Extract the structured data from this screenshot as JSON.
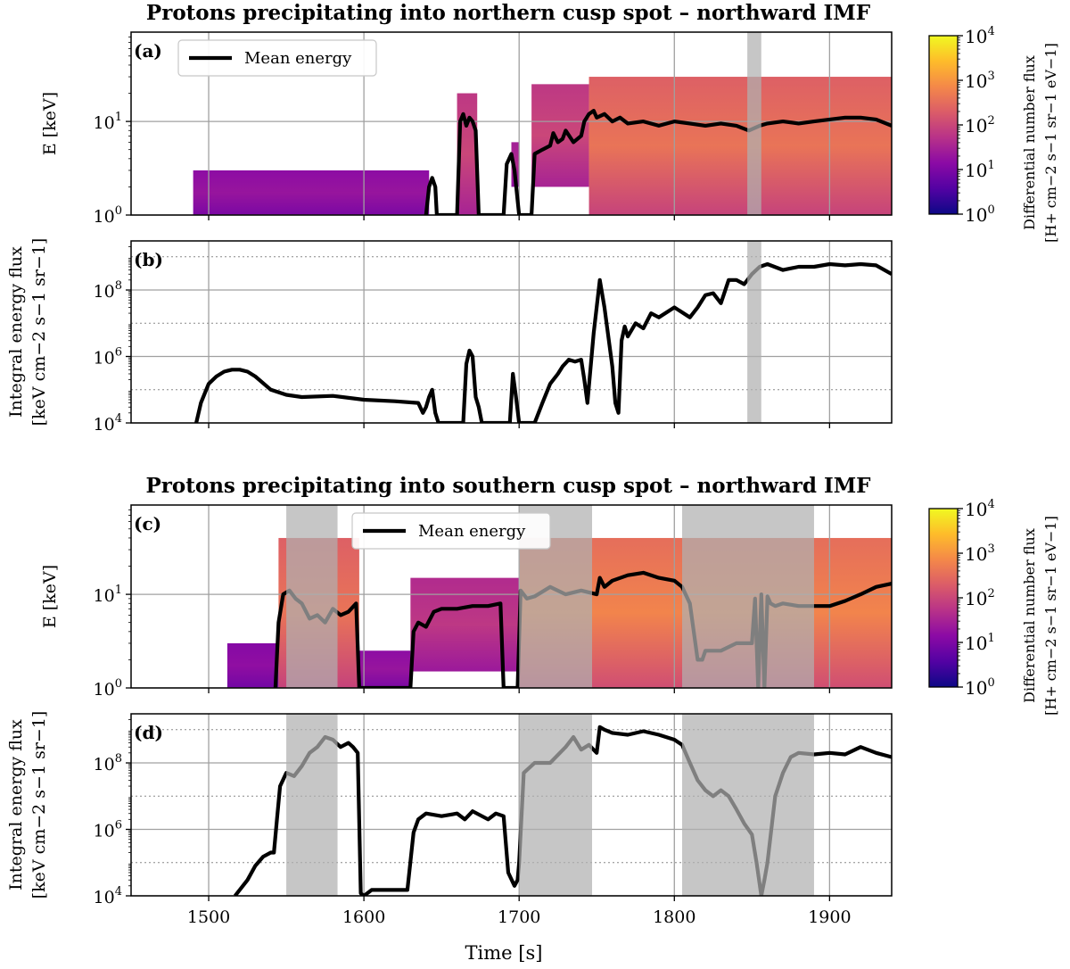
{
  "chart_data": [
    {
      "panel": "a",
      "type": "heatmap",
      "title": "Protons precipitating into northern cusp spot – northward IMF",
      "panel_label": "(a)",
      "ylabel": "E [keV]",
      "y_scale": "log",
      "xlim": [
        1450,
        1940
      ],
      "ylim": [
        1,
        90
      ],
      "y_ticks": [
        {
          "v": 1,
          "e": "0"
        },
        {
          "v": 10,
          "e": "1"
        }
      ],
      "legend": {
        "label": "Mean energy",
        "placement": "top-left"
      },
      "shaded_intervals": [
        [
          1847,
          1856
        ]
      ],
      "heatmap_regions": [
        {
          "x": [
            1490,
            1642
          ],
          "emin": 1.0,
          "emax": 3.0,
          "level": 1.3
        },
        {
          "x": [
            1660,
            1673
          ],
          "emin": 1.0,
          "emax": 20,
          "level": 2.0
        },
        {
          "x": [
            1695,
            1700
          ],
          "emin": 2.0,
          "emax": 6,
          "level": 1.6
        },
        {
          "x": [
            1708,
            1745
          ],
          "emin": 2.0,
          "emax": 25,
          "level": 2.0
        },
        {
          "x": [
            1745,
            1940
          ],
          "emin": 1.0,
          "emax": 30,
          "level": 2.6
        }
      ],
      "series": [
        {
          "name": "Mean energy",
          "x": [
            1640,
            1642,
            1644,
            1646,
            1647,
            1660,
            1662,
            1664,
            1666,
            1668,
            1670,
            1672,
            1674,
            1690,
            1692,
            1695,
            1697,
            1700,
            1708,
            1710,
            1715,
            1720,
            1722,
            1725,
            1728,
            1730,
            1735,
            1740,
            1742,
            1745,
            1748,
            1750,
            1755,
            1760,
            1765,
            1770,
            1780,
            1790,
            1800,
            1810,
            1820,
            1830,
            1840,
            1848,
            1855,
            1860,
            1870,
            1880,
            1890,
            1900,
            1910,
            1920,
            1930,
            1940
          ],
          "y": [
            1.0,
            2.0,
            2.5,
            2.0,
            1.0,
            1.0,
            10,
            12,
            9,
            11,
            10,
            8,
            1.0,
            1.0,
            3.5,
            4.5,
            3.0,
            1.0,
            1.0,
            4.5,
            5.0,
            5.5,
            7.5,
            6.0,
            6.5,
            8.0,
            6.0,
            7.0,
            10,
            12,
            13,
            11,
            12,
            10,
            11,
            9.5,
            10,
            9.0,
            10,
            9.5,
            9.0,
            9.5,
            9.0,
            8.0,
            9.0,
            9.5,
            10,
            9.5,
            10,
            10.5,
            11,
            11,
            10.5,
            9.0
          ]
        }
      ]
    },
    {
      "panel": "b",
      "type": "line",
      "panel_label": "(b)",
      "ylabel": "Integral energy flux",
      "ylabel_units": "[keV cm−2 s−1 sr−1]",
      "y_scale": "log",
      "xlim": [
        1450,
        1940
      ],
      "ylim": [
        10000,
        3000000000
      ],
      "y_ticks": [
        {
          "v": 10000,
          "e": "4"
        },
        {
          "v": 1000000,
          "e": "6"
        },
        {
          "v": 100000000,
          "e": "8"
        }
      ],
      "shaded_intervals": [
        [
          1847,
          1856
        ]
      ],
      "series": [
        {
          "name": "",
          "x": [
            1492,
            1495,
            1500,
            1505,
            1510,
            1515,
            1520,
            1525,
            1530,
            1540,
            1550,
            1560,
            1580,
            1600,
            1620,
            1635,
            1638,
            1640,
            1642,
            1644,
            1646,
            1648,
            1664,
            1666,
            1668,
            1670,
            1672,
            1674,
            1676,
            1694,
            1696,
            1698,
            1700,
            1710,
            1715,
            1720,
            1725,
            1728,
            1732,
            1736,
            1740,
            1742,
            1744,
            1748,
            1752,
            1755,
            1760,
            1762,
            1764,
            1766,
            1768,
            1770,
            1775,
            1780,
            1785,
            1790,
            1800,
            1810,
            1815,
            1820,
            1825,
            1830,
            1835,
            1840,
            1845,
            1850,
            1855,
            1860,
            1870,
            1880,
            1890,
            1900,
            1910,
            1920,
            1930,
            1940
          ],
          "y": [
            10000,
            40000,
            150000,
            250000,
            350000,
            400000,
            400000,
            350000,
            250000,
            100000,
            70000,
            60000,
            65000,
            50000,
            45000,
            40000,
            20000,
            30000,
            60000,
            100000,
            20000,
            10000,
            10000,
            600000,
            1500000,
            1000000,
            60000,
            30000,
            10000,
            10000,
            300000,
            60000,
            10000,
            10000,
            40000,
            150000,
            300000,
            500000,
            800000,
            700000,
            800000,
            200000,
            40000,
            5000000,
            200000000,
            30000000,
            500000,
            40000,
            20000,
            3000000,
            8000000,
            4000000,
            10000000,
            7000000,
            20000000,
            15000000,
            30000000,
            15000000,
            30000000,
            70000000,
            80000000,
            40000000,
            200000000,
            200000000,
            150000000,
            300000000,
            500000000,
            600000000,
            400000000,
            500000000,
            500000000,
            600000000,
            550000000,
            600000000,
            550000000,
            300000000
          ]
        }
      ]
    },
    {
      "panel": "c",
      "type": "heatmap",
      "title": "Protons precipitating into southern cusp spot – northward IMF",
      "panel_label": "(c)",
      "ylabel": "E [keV]",
      "y_scale": "log",
      "xlim": [
        1450,
        1940
      ],
      "ylim": [
        1,
        90
      ],
      "y_ticks": [
        {
          "v": 1,
          "e": "0"
        },
        {
          "v": 10,
          "e": "1"
        }
      ],
      "legend": {
        "label": "Mean energy",
        "placement": "top-center"
      },
      "shaded_intervals": [
        [
          1550,
          1583
        ],
        [
          1700,
          1747
        ],
        [
          1805,
          1890
        ]
      ],
      "heatmap_regions": [
        {
          "x": [
            1512,
            1545
          ],
          "emin": 1.0,
          "emax": 3.0,
          "level": 1.2
        },
        {
          "x": [
            1545,
            1597
          ],
          "emin": 1.0,
          "emax": 40,
          "level": 2.6
        },
        {
          "x": [
            1597,
            1630
          ],
          "emin": 1.0,
          "emax": 2.5,
          "level": 1.3
        },
        {
          "x": [
            1630,
            1700
          ],
          "emin": 1.5,
          "emax": 15,
          "level": 1.8
        },
        {
          "x": [
            1700,
            1940
          ],
          "emin": 1.0,
          "emax": 40,
          "level": 2.8
        }
      ],
      "series": [
        {
          "name": "Mean energy",
          "x": [
            1543,
            1545,
            1548,
            1552,
            1556,
            1560,
            1565,
            1570,
            1575,
            1580,
            1585,
            1590,
            1595,
            1597,
            1630,
            1632,
            1635,
            1640,
            1645,
            1650,
            1660,
            1670,
            1680,
            1688,
            1690,
            1699,
            1701,
            1705,
            1710,
            1720,
            1730,
            1740,
            1750,
            1752,
            1755,
            1760,
            1770,
            1780,
            1790,
            1800,
            1805,
            1810,
            1815,
            1818,
            1820,
            1830,
            1840,
            1850,
            1852,
            1854,
            1856,
            1858,
            1860,
            1862,
            1865,
            1870,
            1880,
            1890,
            1900,
            1910,
            1920,
            1930,
            1940
          ],
          "y": [
            1.0,
            5.0,
            10,
            11,
            9,
            8,
            5.5,
            6.0,
            5.0,
            7.0,
            6.0,
            6.5,
            8.0,
            1.0,
            1.0,
            4.0,
            5.0,
            4.5,
            6.5,
            7.0,
            7.0,
            7.5,
            7.5,
            8.0,
            1.0,
            1.0,
            11,
            9.0,
            9.5,
            12,
            10,
            11,
            10,
            15,
            12,
            14,
            16,
            17,
            15,
            14,
            12,
            8.0,
            2.0,
            2.0,
            2.5,
            2.5,
            3.0,
            3.0,
            9.0,
            1.0,
            10,
            1.0,
            9.5,
            8.0,
            7.5,
            8.0,
            7.5,
            7.5,
            7.5,
            8.5,
            10,
            12,
            13
          ]
        }
      ]
    },
    {
      "panel": "d",
      "type": "line",
      "panel_label": "(d)",
      "ylabel": "Integral energy flux",
      "ylabel_units": "[keV cm−2 s−1 sr−1]",
      "xlabel": "Time [s]",
      "y_scale": "log",
      "xlim": [
        1450,
        1940
      ],
      "ylim": [
        10000,
        3000000000
      ],
      "y_ticks": [
        {
          "v": 10000,
          "e": "4"
        },
        {
          "v": 1000000,
          "e": "6"
        },
        {
          "v": 100000000,
          "e": "8"
        }
      ],
      "x_ticks": [
        1500,
        1600,
        1700,
        1800,
        1900
      ],
      "shaded_intervals": [
        [
          1550,
          1583
        ],
        [
          1700,
          1747
        ],
        [
          1805,
          1890
        ]
      ],
      "series": [
        {
          "name": "",
          "x": [
            1517,
            1525,
            1530,
            1535,
            1540,
            1542,
            1544,
            1546,
            1550,
            1555,
            1560,
            1565,
            1570,
            1575,
            1580,
            1585,
            1590,
            1593,
            1596,
            1598,
            1600,
            1605,
            1620,
            1628,
            1632,
            1635,
            1640,
            1650,
            1660,
            1665,
            1670,
            1680,
            1685,
            1690,
            1693,
            1697,
            1699,
            1700,
            1703,
            1710,
            1720,
            1730,
            1735,
            1740,
            1745,
            1750,
            1752,
            1755,
            1760,
            1770,
            1780,
            1790,
            1800,
            1805,
            1810,
            1815,
            1820,
            1825,
            1830,
            1835,
            1840,
            1845,
            1850,
            1853,
            1856,
            1858,
            1860,
            1865,
            1870,
            1875,
            1880,
            1890,
            1900,
            1910,
            1920,
            1930,
            1940
          ],
          "y": [
            10000,
            30000,
            80000,
            150000,
            200000,
            200000,
            2000000,
            20000000,
            50000000,
            40000000,
            80000000,
            200000000,
            300000000,
            600000000,
            500000000,
            300000000,
            400000000,
            300000000,
            200000000,
            12000,
            10000,
            15000,
            15000,
            15000,
            800000,
            2000000,
            3000000,
            2500000,
            3000000,
            2000000,
            3500000,
            2000000,
            3000000,
            2500000,
            50000,
            20000,
            30000,
            100000,
            50000000,
            100000000,
            100000000,
            300000000,
            600000000,
            250000000,
            350000000,
            200000000,
            1200000000,
            1000000000,
            800000000,
            700000000,
            900000000,
            700000000,
            500000000,
            350000000,
            100000000,
            30000000,
            15000000,
            10000000,
            15000000,
            10000000,
            4000000,
            1500000,
            700000,
            100000,
            10000,
            30000,
            100000,
            10000000,
            50000000,
            150000000,
            200000000,
            180000000,
            200000000,
            180000000,
            300000000,
            200000000,
            150000000
          ]
        }
      ]
    }
  ],
  "colorbars": [
    {
      "label_line1": "Differential number flux",
      "label_line2": "[H+ cm−2 s−1 sr−1 eV−1]",
      "ticks": [
        "0",
        "1",
        "2",
        "3",
        "4"
      ],
      "scale": "log",
      "range": [
        1,
        10000
      ],
      "colormap": [
        "#0d0887",
        "#5302a3",
        "#8b0aa5",
        "#b83289",
        "#db5c68",
        "#f48849",
        "#febc2a",
        "#f0f921"
      ]
    },
    {
      "label_line1": "Differential number flux",
      "label_line2": "[H+ cm−2 s−1 sr−1 eV−1]",
      "ticks": [
        "0",
        "1",
        "2",
        "3",
        "4"
      ],
      "scale": "log",
      "range": [
        1,
        10000
      ],
      "colormap": [
        "#0d0887",
        "#5302a3",
        "#8b0aa5",
        "#b83289",
        "#db5c68",
        "#f48849",
        "#febc2a",
        "#f0f921"
      ]
    }
  ],
  "tick_base": "10",
  "colors": {
    "line": "#000000",
    "shade": "#b0b0b0",
    "grid": "#a0a0a0"
  }
}
